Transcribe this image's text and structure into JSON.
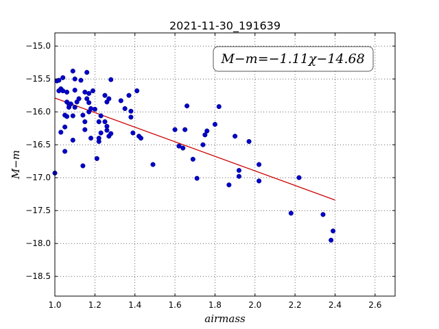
{
  "chart_data": {
    "type": "scatter",
    "title": "2021-11-30_191639",
    "xlabel": "airmass",
    "ylabel": "M−m",
    "annotation": "M−m=−1.11χ−14.68",
    "xlim": [
      1.0,
      2.7
    ],
    "ylim": [
      -18.8,
      -14.8
    ],
    "y_inverted": true,
    "grid": true,
    "x_ticks": [
      1.0,
      1.2,
      1.4,
      1.6,
      1.8,
      2.0,
      2.2,
      2.4,
      2.6
    ],
    "x_tick_labels": [
      "1.0",
      "1.2",
      "1.4",
      "1.6",
      "1.8",
      "2.0",
      "2.2",
      "2.4",
      "2.6"
    ],
    "y_ticks": [
      -15.0,
      -15.5,
      -16.0,
      -16.5,
      -17.0,
      -17.5,
      -18.0,
      -18.5
    ],
    "y_tick_labels": [
      "−15.0",
      "−15.5",
      "−16.0",
      "−16.5",
      "−17.0",
      "−17.5",
      "−18.0",
      "−18.5"
    ],
    "series": [
      {
        "kind": "scatter",
        "color": "#0000cc",
        "points": [
          [
            1.0,
            -16.93
          ],
          [
            1.01,
            -15.53
          ],
          [
            1.02,
            -15.68
          ],
          [
            1.02,
            -15.52
          ],
          [
            1.03,
            -15.65
          ],
          [
            1.03,
            -16.31
          ],
          [
            1.04,
            -15.68
          ],
          [
            1.04,
            -15.48
          ],
          [
            1.05,
            -16.05
          ],
          [
            1.05,
            -16.23
          ],
          [
            1.05,
            -16.6
          ],
          [
            1.06,
            -15.7
          ],
          [
            1.06,
            -15.85
          ],
          [
            1.06,
            -16.07
          ],
          [
            1.07,
            -15.88
          ],
          [
            1.07,
            -15.93
          ],
          [
            1.08,
            -15.88
          ],
          [
            1.09,
            -15.38
          ],
          [
            1.09,
            -16.06
          ],
          [
            1.09,
            -16.43
          ],
          [
            1.1,
            -15.67
          ],
          [
            1.1,
            -15.5
          ],
          [
            1.1,
            -15.93
          ],
          [
            1.11,
            -15.85
          ],
          [
            1.12,
            -15.8
          ],
          [
            1.13,
            -15.52
          ],
          [
            1.14,
            -16.05
          ],
          [
            1.14,
            -16.82
          ],
          [
            1.15,
            -15.7
          ],
          [
            1.15,
            -16.27
          ],
          [
            1.15,
            -16.15
          ],
          [
            1.16,
            -15.8
          ],
          [
            1.16,
            -15.4
          ],
          [
            1.17,
            -15.72
          ],
          [
            1.17,
            -15.86
          ],
          [
            1.17,
            -16.0
          ],
          [
            1.18,
            -16.4
          ],
          [
            1.18,
            -15.95
          ],
          [
            1.19,
            -15.68
          ],
          [
            1.2,
            -15.96
          ],
          [
            1.21,
            -16.71
          ],
          [
            1.22,
            -16.15
          ],
          [
            1.22,
            -16.45
          ],
          [
            1.22,
            -16.4
          ],
          [
            1.23,
            -16.06
          ],
          [
            1.23,
            -16.32
          ],
          [
            1.25,
            -15.75
          ],
          [
            1.25,
            -16.15
          ],
          [
            1.26,
            -16.22
          ],
          [
            1.26,
            -16.28
          ],
          [
            1.26,
            -15.85
          ],
          [
            1.27,
            -15.8
          ],
          [
            1.27,
            -16.37
          ],
          [
            1.28,
            -15.51
          ],
          [
            1.28,
            -16.33
          ],
          [
            1.33,
            -15.83
          ],
          [
            1.35,
            -15.95
          ],
          [
            1.37,
            -15.75
          ],
          [
            1.38,
            -15.99
          ],
          [
            1.38,
            -16.08
          ],
          [
            1.39,
            -16.32
          ],
          [
            1.41,
            -15.68
          ],
          [
            1.42,
            -16.37
          ],
          [
            1.43,
            -16.4
          ],
          [
            1.49,
            -16.8
          ],
          [
            1.6,
            -16.27
          ],
          [
            1.62,
            -16.52
          ],
          [
            1.64,
            -16.55
          ],
          [
            1.65,
            -16.27
          ],
          [
            1.66,
            -15.91
          ],
          [
            1.69,
            -16.72
          ],
          [
            1.71,
            -17.01
          ],
          [
            1.74,
            -16.5
          ],
          [
            1.75,
            -16.35
          ],
          [
            1.76,
            -16.29
          ],
          [
            1.8,
            -16.19
          ],
          [
            1.82,
            -15.92
          ],
          [
            1.87,
            -17.11
          ],
          [
            1.9,
            -16.37
          ],
          [
            1.92,
            -16.89
          ],
          [
            1.92,
            -16.98
          ],
          [
            1.97,
            -16.45
          ],
          [
            2.02,
            -16.8
          ],
          [
            2.02,
            -17.05
          ],
          [
            2.18,
            -17.54
          ],
          [
            2.22,
            -17.0
          ],
          [
            2.34,
            -17.56
          ],
          [
            2.38,
            -17.95
          ],
          [
            2.39,
            -17.81
          ]
        ]
      },
      {
        "kind": "line",
        "color": "#cc0000",
        "points": [
          [
            1.0,
            -15.79
          ],
          [
            2.4,
            -17.34
          ]
        ]
      }
    ]
  }
}
